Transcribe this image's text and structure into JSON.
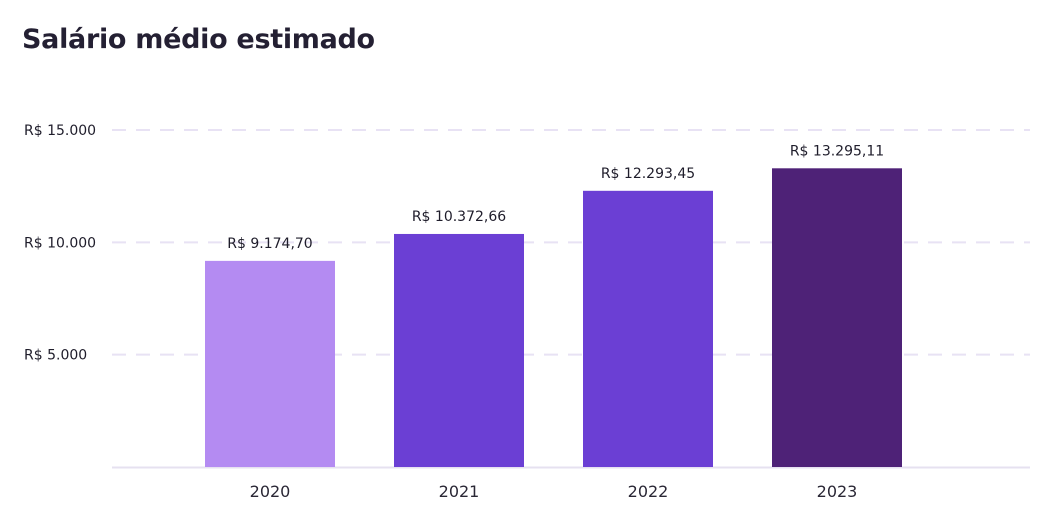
{
  "chart_data": {
    "type": "bar",
    "title": "Salário médio estimado",
    "xlabel": "",
    "ylabel": "",
    "categories": [
      "2020",
      "2021",
      "2022",
      "2023"
    ],
    "values": [
      9174.7,
      10372.66,
      12293.45,
      13295.11
    ],
    "value_labels": [
      "R$ 9.174,70",
      "R$ 10.372,66",
      "R$ 12.293,45",
      "R$ 13.295,11"
    ],
    "bar_colors": [
      "#b48bf2",
      "#6b3fd4",
      "#6b3fd4",
      "#4e2277"
    ],
    "ylim": [
      0,
      15000
    ],
    "y_ticks": [
      {
        "value": 5000,
        "label": "R$ 5.000"
      },
      {
        "value": 10000,
        "label": "R$ 10.000"
      },
      {
        "value": 15000,
        "label": "R$ 15.000"
      }
    ],
    "grid": true,
    "grid_color": "#e8e2f4",
    "baseline_color": "#e6e1f0"
  }
}
